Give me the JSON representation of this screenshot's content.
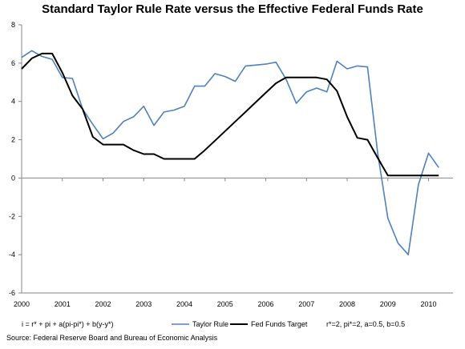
{
  "chart_data": {
    "type": "line",
    "title": "Standard Taylor Rule Rate versus the Effective Federal Funds Rate",
    "xlabel": "",
    "ylabel": "",
    "xlim": [
      2000.0,
      2010.6
    ],
    "ylim": [
      -6,
      8
    ],
    "y_ticks": [
      -6,
      -4,
      -2,
      0,
      2,
      4,
      6,
      8
    ],
    "x_ticks": [
      2000,
      2001,
      2002,
      2003,
      2004,
      2005,
      2006,
      2007,
      2008,
      2009,
      2010
    ],
    "x_tick_labels": [
      "2000",
      "2001",
      "2002",
      "2003",
      "2004",
      "2005",
      "2006",
      "2007",
      "2008",
      "2009",
      "2010"
    ],
    "grid": false,
    "legend_position": "bottom",
    "colors": {
      "taylor_rule": "#4f81bd",
      "fed_funds": "#000000",
      "axis": "#868686"
    },
    "series": [
      {
        "name": "Taylor Rule",
        "x": [
          2000.0,
          2000.25,
          2000.5,
          2000.75,
          2001.0,
          2001.25,
          2001.5,
          2001.75,
          2002.0,
          2002.25,
          2002.5,
          2002.75,
          2003.0,
          2003.25,
          2003.5,
          2003.75,
          2004.0,
          2004.25,
          2004.5,
          2004.75,
          2005.0,
          2005.25,
          2005.5,
          2005.75,
          2006.0,
          2006.25,
          2006.5,
          2006.75,
          2007.0,
          2007.25,
          2007.5,
          2007.75,
          2008.0,
          2008.25,
          2008.5,
          2008.75,
          2009.0,
          2009.25,
          2009.5,
          2009.75,
          2010.0,
          2010.25
        ],
        "values": [
          6.3,
          6.65,
          6.35,
          6.2,
          5.25,
          5.2,
          3.6,
          2.8,
          2.05,
          2.35,
          2.95,
          3.2,
          3.75,
          2.75,
          3.45,
          3.55,
          3.75,
          4.8,
          4.8,
          5.45,
          5.3,
          5.05,
          5.85,
          5.9,
          5.95,
          6.05,
          5.15,
          3.9,
          4.5,
          4.7,
          4.5,
          6.1,
          5.7,
          5.85,
          5.8,
          1.3,
          -2.1,
          -3.4,
          -4.0,
          -0.35,
          1.3,
          0.55
        ]
      },
      {
        "name": "Fed Funds Target",
        "x": [
          2000.0,
          2000.25,
          2000.5,
          2000.75,
          2001.0,
          2001.25,
          2001.5,
          2001.75,
          2002.0,
          2002.25,
          2002.5,
          2002.75,
          2003.0,
          2003.25,
          2003.5,
          2003.75,
          2004.0,
          2004.25,
          2004.5,
          2004.75,
          2005.0,
          2005.25,
          2005.5,
          2005.75,
          2006.0,
          2006.25,
          2006.5,
          2006.75,
          2007.0,
          2007.25,
          2007.5,
          2007.75,
          2008.0,
          2008.25,
          2008.5,
          2008.75,
          2009.0,
          2009.25,
          2009.5,
          2009.75,
          2010.0,
          2010.25
        ],
        "values": [
          5.7,
          6.25,
          6.5,
          6.5,
          5.5,
          4.3,
          3.6,
          2.15,
          1.75,
          1.75,
          1.75,
          1.45,
          1.25,
          1.25,
          1.0,
          1.0,
          1.0,
          1.0,
          1.45,
          1.95,
          2.45,
          2.95,
          3.45,
          3.95,
          4.45,
          4.95,
          5.25,
          5.25,
          5.25,
          5.25,
          5.15,
          4.55,
          3.2,
          2.1,
          2.0,
          1.05,
          0.13,
          0.13,
          0.13,
          0.13,
          0.13,
          0.13
        ]
      }
    ]
  },
  "footer": {
    "formula": "i = r* + pi + a(pi-pi*) + b(y-y*)",
    "params": "r*=2, pi*=2, a=0.5, b=0.5",
    "source": "Source: Federal Reserve Board and Bureau of Economic Analysis"
  }
}
